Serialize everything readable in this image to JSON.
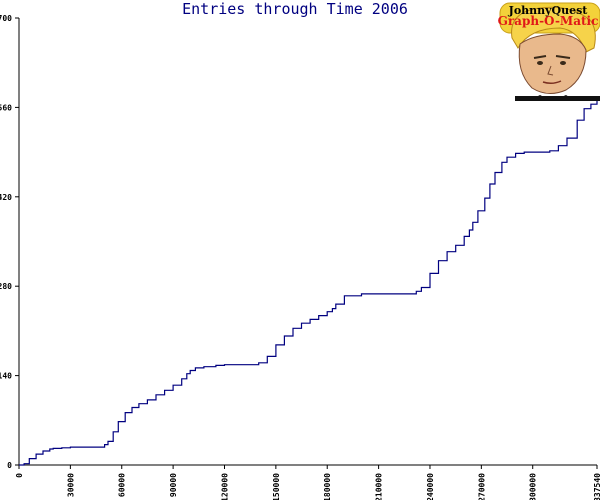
{
  "chart_data": {
    "type": "line",
    "title": "Entries through Time 2006",
    "xlabel": "",
    "ylabel": "",
    "xlim": [
      0,
      337540
    ],
    "ylim": [
      0,
      700
    ],
    "x_ticks": [
      0,
      30000,
      60000,
      90000,
      120000,
      150000,
      180000,
      210000,
      240000,
      270000,
      300000,
      337540
    ],
    "x_tick_labels": [
      "0",
      "30000",
      "60000",
      "90000",
      "120000",
      "150000",
      "180000",
      "210000",
      "240000",
      "270000",
      "300000",
      "337540"
    ],
    "y_ticks": [
      0,
      140,
      280,
      420,
      560,
      700
    ],
    "y_tick_labels": [
      "0",
      "140",
      "280",
      "420",
      "560",
      "700"
    ],
    "grid": false,
    "legend": "none",
    "series": [
      {
        "color": "#000080",
        "x": [
          0,
          3000,
          6000,
          10000,
          14000,
          18000,
          20000,
          25000,
          30000,
          40000,
          48000,
          50000,
          52000,
          55000,
          58000,
          62000,
          66000,
          70000,
          75000,
          80000,
          85000,
          90000,
          95000,
          98000,
          100000,
          103000,
          108000,
          115000,
          120000,
          125000,
          130000,
          135000,
          140000,
          145000,
          150000,
          155000,
          160000,
          165000,
          170000,
          175000,
          180000,
          183000,
          185000,
          190000,
          200000,
          210000,
          220000,
          225000,
          232000,
          235000,
          240000,
          245000,
          250000,
          255000,
          260000,
          263000,
          265000,
          268000,
          272000,
          275000,
          278000,
          282000,
          285000,
          290000,
          295000,
          300000,
          303000,
          307000,
          310000,
          315000,
          320000,
          326000,
          330000,
          334000,
          337540
        ],
        "y": [
          0,
          2,
          10,
          17,
          22,
          25,
          26,
          27,
          28,
          28,
          28,
          32,
          37,
          52,
          68,
          82,
          90,
          96,
          102,
          110,
          117,
          125,
          135,
          143,
          148,
          152,
          154,
          156,
          157,
          157,
          157,
          157,
          160,
          170,
          188,
          202,
          214,
          222,
          228,
          234,
          240,
          245,
          252,
          265,
          268,
          268,
          268,
          268,
          272,
          278,
          300,
          320,
          334,
          344,
          358,
          368,
          380,
          398,
          418,
          440,
          458,
          474,
          482,
          488,
          490,
          490,
          490,
          490,
          492,
          500,
          512,
          540,
          558,
          565,
          575
        ]
      }
    ]
  },
  "logo": {
    "line1": "JohnnyQuest",
    "line2": "Graph-O-Matic"
  },
  "colors": {
    "line": "#000080",
    "title": "#000080",
    "axis": "#000000",
    "logo_red": "#e01818",
    "logo_banner": "#f3d23a"
  },
  "icons": {
    "logo": "johnny-quest-face-icon"
  }
}
